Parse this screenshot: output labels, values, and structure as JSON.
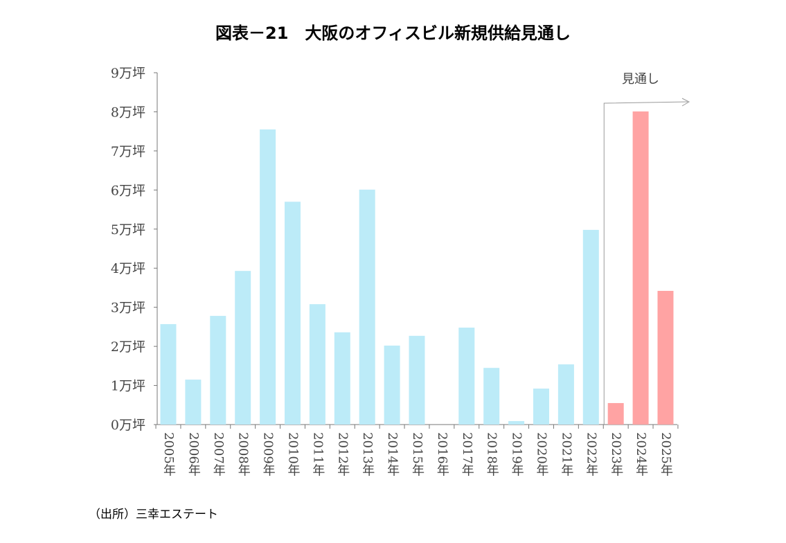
{
  "chart_data": {
    "type": "bar",
    "title": "図表－21　大阪のオフィスビル新規供給見通し",
    "categories": [
      "2005年",
      "2006年",
      "2007年",
      "2008年",
      "2009年",
      "2010年",
      "2011年",
      "2012年",
      "2013年",
      "2014年",
      "2015年",
      "2016年",
      "2017年",
      "2018年",
      "2019年",
      "2020年",
      "2021年",
      "2022年",
      "2023年",
      "2024年",
      "2025年"
    ],
    "values": [
      2.57,
      1.15,
      2.78,
      3.93,
      7.55,
      5.7,
      3.08,
      2.36,
      6.01,
      2.02,
      2.27,
      0,
      2.48,
      1.45,
      0.09,
      0.92,
      1.54,
      4.98,
      0.55,
      8.01,
      3.42
    ],
    "unit": "万坪",
    "ylim": [
      0,
      9
    ],
    "yticks": [
      "0万坪",
      "1万坪",
      "2万坪",
      "3万坪",
      "4万坪",
      "5万坪",
      "6万坪",
      "7万坪",
      "8万坪",
      "9万坪"
    ],
    "forecast_label": "見通し",
    "forecast_from": "2023年",
    "colors": {
      "actual": "#bcebf8",
      "forecast": "#ffa3a3"
    },
    "grid": false,
    "source": "（出所）三幸エステート"
  }
}
